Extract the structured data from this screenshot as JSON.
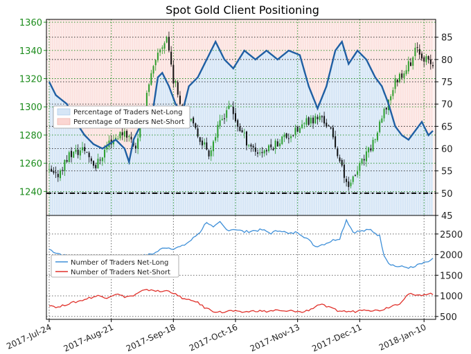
{
  "chart_data": [
    {
      "type": "candlestick",
      "title": "Spot Gold Client Positioning",
      "x_ticks": [
        "2017-Jul-24",
        "2017-Aug-21",
        "2017-Sep-18",
        "2017-Oct-16",
        "2017-Nov-13",
        "2017-Dec-11",
        "2018-Jan-10"
      ],
      "left_axis": {
        "ticks": [
          1240,
          1260,
          1280,
          1300,
          1320,
          1340,
          1360
        ],
        "range": [
          1223,
          1362
        ]
      },
      "right_axis": {
        "ticks": [
          45,
          50,
          55,
          60,
          65,
          70,
          75,
          80,
          85
        ],
        "range": [
          45,
          89
        ]
      },
      "legend": {
        "placement": "left",
        "entries": [
          "Percentage of Traders Net-Long",
          "Percentage of Traders Net-Short"
        ]
      },
      "colors": {
        "bull": "#2ca02c",
        "bear": "#111111",
        "net_long_fill": "#d6e6f6",
        "net_short_fill": "#fbd6d2",
        "pct_line": "#1f5fa3"
      },
      "reference_line": 50,
      "price_anchors": [
        [
          0,
          1255
        ],
        [
          4,
          1250
        ],
        [
          10,
          1266
        ],
        [
          17,
          1270
        ],
        [
          22,
          1258
        ],
        [
          28,
          1275
        ],
        [
          35,
          1283
        ],
        [
          40,
          1272
        ],
        [
          46,
          1318
        ],
        [
          51,
          1340
        ],
        [
          54,
          1350
        ],
        [
          57,
          1320
        ],
        [
          62,
          1296
        ],
        [
          67,
          1283
        ],
        [
          73,
          1268
        ],
        [
          78,
          1288
        ],
        [
          82,
          1302
        ],
        [
          85,
          1290
        ],
        [
          90,
          1276
        ],
        [
          95,
          1268
        ],
        [
          100,
          1270
        ],
        [
          106,
          1278
        ],
        [
          112,
          1282
        ],
        [
          118,
          1290
        ],
        [
          124,
          1293
        ],
        [
          128,
          1282
        ],
        [
          131,
          1268
        ],
        [
          134,
          1250
        ],
        [
          137,
          1245
        ],
        [
          141,
          1258
        ],
        [
          145,
          1268
        ],
        [
          149,
          1282
        ],
        [
          153,
          1300
        ],
        [
          157,
          1318
        ],
        [
          161,
          1326
        ],
        [
          164,
          1332
        ],
        [
          167,
          1342
        ],
        [
          170,
          1335
        ],
        [
          173,
          1330
        ]
      ],
      "net_long_pct_anchors": [
        [
          0,
          75
        ],
        [
          3,
          72
        ],
        [
          8,
          70
        ],
        [
          12,
          66
        ],
        [
          16,
          63
        ],
        [
          20,
          61
        ],
        [
          24,
          60
        ],
        [
          30,
          62
        ],
        [
          34,
          60
        ],
        [
          36,
          57
        ],
        [
          38,
          62
        ],
        [
          41,
          65
        ],
        [
          46,
          66
        ],
        [
          49,
          76
        ],
        [
          51,
          77
        ],
        [
          54,
          74
        ],
        [
          57,
          70
        ],
        [
          60,
          68
        ],
        [
          63,
          74
        ],
        [
          67,
          76
        ],
        [
          71,
          80
        ],
        [
          75,
          84
        ],
        [
          79,
          80
        ],
        [
          83,
          78
        ],
        [
          88,
          82
        ],
        [
          93,
          80
        ],
        [
          98,
          82
        ],
        [
          103,
          80
        ],
        [
          108,
          82
        ],
        [
          113,
          81
        ],
        [
          117,
          74
        ],
        [
          121,
          69
        ],
        [
          125,
          74
        ],
        [
          129,
          82
        ],
        [
          132,
          84
        ],
        [
          135,
          79
        ],
        [
          139,
          82
        ],
        [
          143,
          80
        ],
        [
          147,
          76
        ],
        [
          150,
          74
        ],
        [
          153,
          70
        ],
        [
          156,
          65
        ],
        [
          159,
          63
        ],
        [
          162,
          62
        ],
        [
          165,
          64
        ],
        [
          168,
          66
        ],
        [
          171,
          63
        ],
        [
          173,
          64
        ]
      ]
    },
    {
      "type": "line",
      "y_axis": {
        "ticks": [
          500,
          1000,
          1500,
          2000,
          2500
        ],
        "range": [
          430,
          2950
        ]
      },
      "legend": {
        "placement": "left",
        "entries": [
          "Number of Traders Net-Long",
          "Number of Traders Net-Short"
        ]
      },
      "series": [
        {
          "name": "Number of Traders Net-Long",
          "color": "#3e8fd8",
          "anchors": [
            [
              0,
              2130
            ],
            [
              3,
              2050
            ],
            [
              8,
              1960
            ],
            [
              14,
              1920
            ],
            [
              20,
              1900
            ],
            [
              26,
              1930
            ],
            [
              32,
              1930
            ],
            [
              38,
              1950
            ],
            [
              44,
              1980
            ],
            [
              48,
              2050
            ],
            [
              52,
              2180
            ],
            [
              56,
              2150
            ],
            [
              60,
              2200
            ],
            [
              64,
              2350
            ],
            [
              68,
              2550
            ],
            [
              71,
              2800
            ],
            [
              74,
              2650
            ],
            [
              77,
              2780
            ],
            [
              80,
              2600
            ],
            [
              84,
              2620
            ],
            [
              88,
              2550
            ],
            [
              92,
              2580
            ],
            [
              96,
              2600
            ],
            [
              100,
              2520
            ],
            [
              104,
              2600
            ],
            [
              108,
              2500
            ],
            [
              112,
              2550
            ],
            [
              116,
              2400
            ],
            [
              120,
              2200
            ],
            [
              124,
              2260
            ],
            [
              128,
              2350
            ],
            [
              131,
              2400
            ],
            [
              134,
              2850
            ],
            [
              137,
              2550
            ],
            [
              141,
              2570
            ],
            [
              145,
              2600
            ],
            [
              149,
              2450
            ],
            [
              151,
              2000
            ],
            [
              153,
              1800
            ],
            [
              156,
              1720
            ],
            [
              160,
              1700
            ],
            [
              164,
              1680
            ],
            [
              167,
              1770
            ],
            [
              170,
              1800
            ],
            [
              173,
              1900
            ]
          ]
        },
        {
          "name": "Number of Traders Net-Short",
          "color": "#e0302a",
          "anchors": [
            [
              0,
              780
            ],
            [
              4,
              720
            ],
            [
              8,
              800
            ],
            [
              14,
              880
            ],
            [
              18,
              950
            ],
            [
              22,
              1000
            ],
            [
              26,
              960
            ],
            [
              30,
              1050
            ],
            [
              34,
              980
            ],
            [
              38,
              1000
            ],
            [
              42,
              1120
            ],
            [
              46,
              1150
            ],
            [
              50,
              1100
            ],
            [
              54,
              1130
            ],
            [
              58,
              1000
            ],
            [
              62,
              900
            ],
            [
              66,
              870
            ],
            [
              70,
              720
            ],
            [
              74,
              630
            ],
            [
              78,
              600
            ],
            [
              82,
              640
            ],
            [
              86,
              600
            ],
            [
              90,
              620
            ],
            [
              94,
              640
            ],
            [
              98,
              620
            ],
            [
              102,
              650
            ],
            [
              106,
              620
            ],
            [
              110,
              640
            ],
            [
              114,
              600
            ],
            [
              118,
              680
            ],
            [
              122,
              800
            ],
            [
              126,
              720
            ],
            [
              130,
              640
            ],
            [
              134,
              620
            ],
            [
              138,
              620
            ],
            [
              142,
              680
            ],
            [
              146,
              640
            ],
            [
              150,
              660
            ],
            [
              154,
              750
            ],
            [
              158,
              820
            ],
            [
              162,
              1050
            ],
            [
              166,
              1000
            ],
            [
              170,
              1050
            ],
            [
              173,
              1050
            ]
          ]
        }
      ]
    }
  ]
}
